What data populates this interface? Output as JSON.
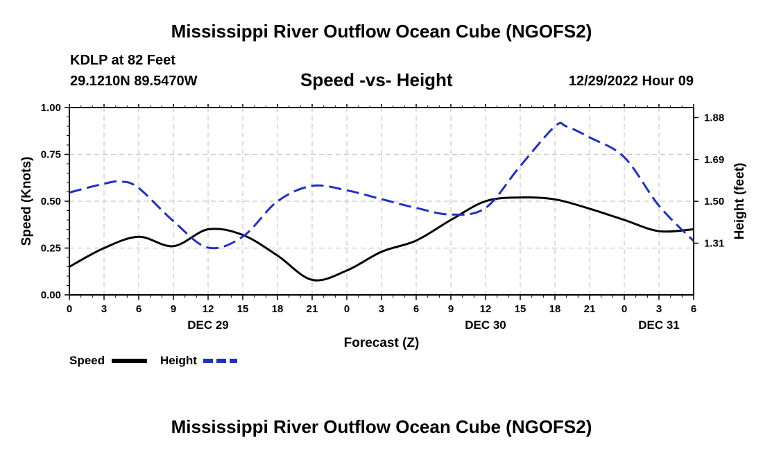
{
  "header": {
    "title": "Mississippi River Outflow Ocean Cube (NGOFS2)",
    "station": "KDLP at 82 Feet",
    "coords": "29.1210N  89.5470W",
    "timestamp": "12/29/2022 Hour 09"
  },
  "footer": {
    "title": "Mississippi River Outflow Ocean Cube (NGOFS2)"
  },
  "legend": {
    "speed_label": "Speed",
    "height_label": "Height"
  },
  "chart_data": {
    "type": "line",
    "title": "Speed -vs- Height",
    "xlabel": "Forecast (Z)",
    "ylabel": "Speed (Knots)",
    "y2label": "Height (feet)",
    "xlim": [
      0,
      54
    ],
    "ylim": [
      0,
      1
    ],
    "y2lim": [
      1.0755,
      1.9255
    ],
    "x_ticks": [
      0,
      3,
      6,
      9,
      12,
      15,
      18,
      21,
      24,
      27,
      30,
      33,
      36,
      39,
      42,
      45,
      48,
      51,
      54
    ],
    "x_tick_labels": [
      "0",
      "3",
      "6",
      "9",
      "12",
      "15",
      "18",
      "21",
      "0",
      "3",
      "6",
      "9",
      "12",
      "15",
      "18",
      "21",
      "0",
      "3",
      "6"
    ],
    "y_ticks": [
      0,
      0.25,
      0.5,
      0.75,
      1.0
    ],
    "y_tick_labels": [
      "0.00",
      "0.25",
      "0.50",
      "0.75",
      "1.00"
    ],
    "y2_ticks": [
      1.31,
      1.5,
      1.69,
      1.88
    ],
    "y2_tick_labels": [
      "1.31",
      "1.50",
      "1.69",
      "1.88"
    ],
    "date_labels": [
      {
        "x": 12,
        "label": "DEC 29"
      },
      {
        "x": 36,
        "label": "DEC 30"
      },
      {
        "x": 51,
        "label": "DEC 31"
      }
    ],
    "grid": true,
    "series": [
      {
        "name": "Speed",
        "axis": "left",
        "color": "#000000",
        "dash": "solid",
        "x": [
          0,
          3,
          6,
          9,
          12,
          15,
          18,
          21,
          24,
          27,
          30,
          33,
          36,
          39,
          42,
          45,
          48,
          51,
          54
        ],
        "values": [
          0.15,
          0.25,
          0.31,
          0.26,
          0.35,
          0.32,
          0.21,
          0.08,
          0.13,
          0.23,
          0.29,
          0.4,
          0.5,
          0.52,
          0.51,
          0.46,
          0.4,
          0.34,
          0.35
        ]
      },
      {
        "name": "Height",
        "axis": "right",
        "color": "#1f2fc8",
        "dash": "dashed",
        "x": [
          0,
          3,
          4.5,
          6,
          9,
          12,
          15,
          18,
          21,
          24,
          27,
          30,
          33,
          36,
          39,
          42,
          43,
          45,
          48,
          51,
          54
        ],
        "values": [
          1.54,
          1.58,
          1.59,
          1.56,
          1.41,
          1.29,
          1.34,
          1.5,
          1.57,
          1.55,
          1.51,
          1.47,
          1.44,
          1.47,
          1.66,
          1.84,
          1.84,
          1.79,
          1.7,
          1.48,
          1.32
        ]
      }
    ]
  }
}
